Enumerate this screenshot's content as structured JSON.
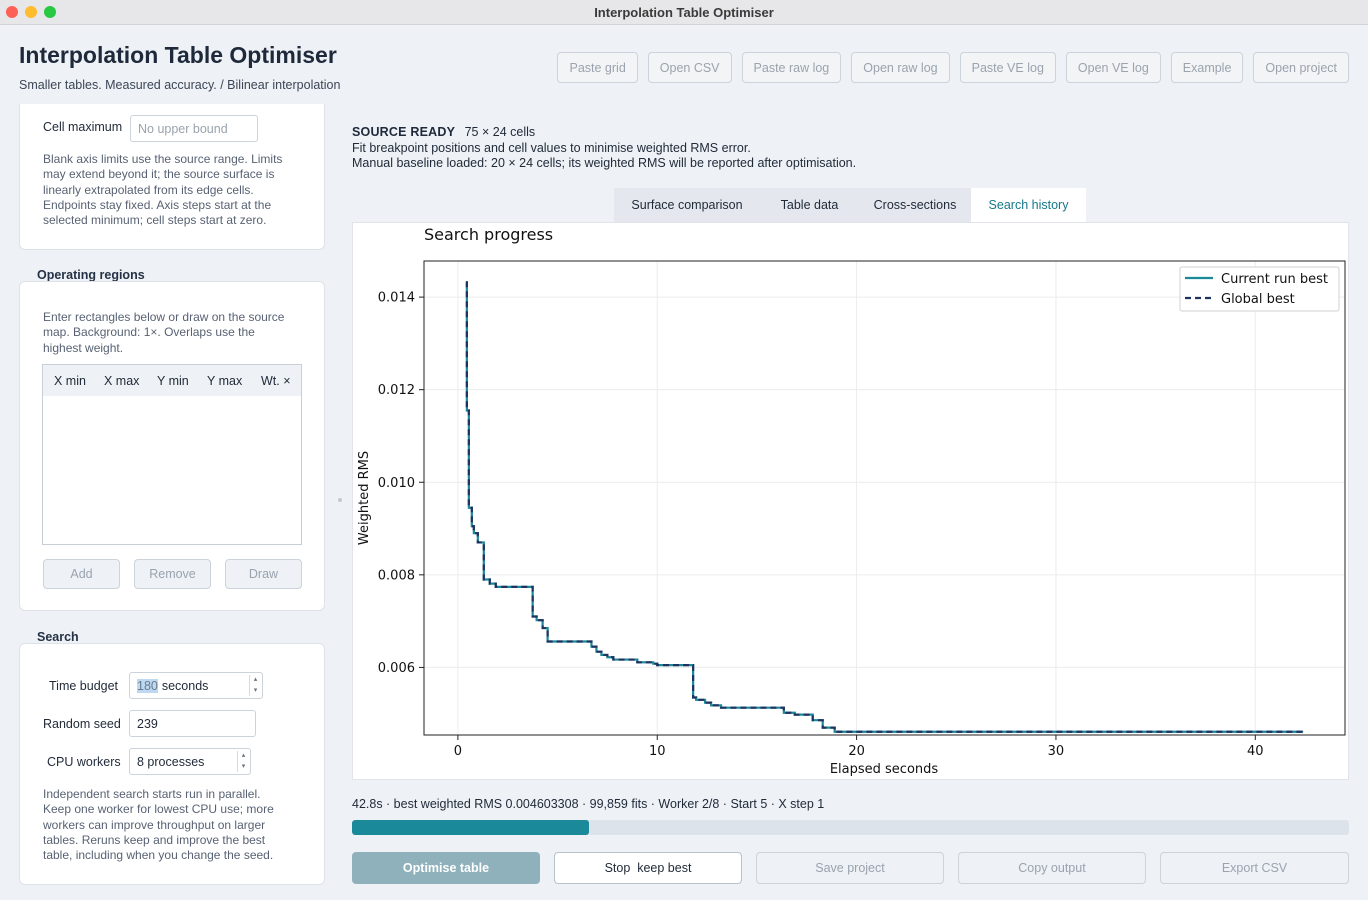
{
  "window": {
    "title": "Interpolation Table Optimiser"
  },
  "header": {
    "title": "Interpolation Table Optimiser",
    "subtitle": "Smaller tables. Measured accuracy.  /  Bilinear interpolation",
    "toolbar": [
      "Paste grid",
      "Open CSV",
      "Paste raw log",
      "Open raw log",
      "Paste VE log",
      "Open VE log",
      "Example",
      "Open project"
    ]
  },
  "limits": {
    "cell_max_label": "Cell maximum",
    "cell_max_placeholder": "No upper bound",
    "help": [
      "Blank axis limits use the source range. Limits",
      "may extend beyond it; the source surface is",
      "linearly extrapolated from its edge cells.",
      "Endpoints stay fixed. Axis steps start at the",
      "selected minimum; cell steps start at zero."
    ]
  },
  "regions": {
    "title": "Operating regions",
    "help": [
      "Enter rectangles below or draw on the source",
      "map. Background: 1×. Overlaps use the",
      "highest weight."
    ],
    "columns": [
      "X min",
      "X max",
      "Y min",
      "Y max",
      "Wt. ×"
    ],
    "buttons": {
      "add": "Add",
      "remove": "Remove",
      "draw": "Draw"
    }
  },
  "search": {
    "title": "Search",
    "time_budget_label": "Time budget",
    "time_budget_value": "180",
    "time_budget_unit": "seconds",
    "seed_label": "Random seed",
    "seed_value": "239",
    "workers_label": "CPU workers",
    "workers_value": "8 processes",
    "help": [
      "Independent search starts run in parallel.",
      "Keep one worker for lowest CPU use; more",
      "workers can improve throughput on larger",
      "tables. Reruns keep and improve the best",
      "table, including when you change the seed."
    ]
  },
  "source": {
    "status": "SOURCE READY",
    "dims": "75 × 24 cells",
    "line1": "Fit breakpoint positions and cell values to minimise weighted RMS error.",
    "line2": "Manual baseline loaded: 20 × 24 cells; its weighted RMS will be reported after optimisation."
  },
  "tabs": [
    "Surface comparison",
    "Table data",
    "Cross-sections",
    "Search history"
  ],
  "active_tab": 3,
  "chart_data": {
    "type": "line",
    "title": "Search progress",
    "xlabel": "Elapsed seconds",
    "ylabel": "Weighted RMS",
    "xlim": [
      -1.7,
      44.5
    ],
    "ylim": [
      0.00454,
      0.01478
    ],
    "xticks": [
      0,
      10,
      20,
      30,
      40
    ],
    "yticks": [
      0.006,
      0.008,
      0.01,
      0.012,
      0.014
    ],
    "xtick_labels": [
      "0",
      "10",
      "20",
      "30",
      "40"
    ],
    "ytick_labels": [
      "0.006",
      "0.008",
      "0.010",
      "0.012",
      "0.014"
    ],
    "grid": true,
    "legend_position": "top-right",
    "series": [
      {
        "name": "Current run best",
        "color": "#1a8a9a",
        "style": "solid",
        "step": true,
        "x": [
          0.4,
          0.45,
          0.55,
          0.7,
          0.8,
          1.0,
          1.3,
          1.6,
          1.9,
          3.75,
          3.95,
          4.25,
          4.5,
          6.7,
          6.95,
          7.2,
          7.5,
          7.8,
          9.0,
          9.8,
          10.0,
          10.6,
          11.8,
          11.95,
          12.4,
          12.7,
          13.2,
          16.35,
          16.9,
          17.8,
          18.3,
          18.9,
          42.4
        ],
        "y": [
          0.01432,
          0.01155,
          0.00945,
          0.00905,
          0.0089,
          0.0087,
          0.0079,
          0.00781,
          0.00774,
          0.0071,
          0.00702,
          0.00685,
          0.00656,
          0.00645,
          0.00634,
          0.00627,
          0.00622,
          0.00617,
          0.00611,
          0.00608,
          0.00605,
          0.00605,
          0.00535,
          0.0053,
          0.00524,
          0.00518,
          0.00513,
          0.00502,
          0.00498,
          0.00486,
          0.0047,
          0.00461,
          0.00461
        ]
      },
      {
        "name": "Global best",
        "color": "#1f3260",
        "style": "dashed",
        "step": true,
        "x": [
          0.4,
          0.45,
          0.55,
          0.7,
          0.8,
          1.0,
          1.3,
          1.6,
          1.9,
          3.75,
          3.95,
          4.25,
          4.5,
          6.7,
          6.95,
          7.2,
          7.5,
          7.8,
          9.0,
          9.8,
          10.0,
          10.6,
          11.8,
          11.95,
          12.4,
          12.7,
          13.2,
          16.35,
          16.9,
          17.8,
          18.3,
          18.9,
          42.4
        ],
        "y": [
          0.01432,
          0.01155,
          0.00945,
          0.00905,
          0.0089,
          0.0087,
          0.0079,
          0.00781,
          0.00774,
          0.0071,
          0.00702,
          0.00685,
          0.00656,
          0.00645,
          0.00634,
          0.00627,
          0.00622,
          0.00617,
          0.00611,
          0.00608,
          0.00605,
          0.00605,
          0.00535,
          0.0053,
          0.00524,
          0.00518,
          0.00513,
          0.00502,
          0.00498,
          0.00486,
          0.0047,
          0.00461,
          0.00461
        ]
      }
    ]
  },
  "status": {
    "text": "42.8s · best weighted RMS 0.004603308 · 99,859 fits · Worker 2/8 · Start 5 · X step 1",
    "progress": 0.238
  },
  "actions": {
    "optimise": "Optimise table",
    "stop": "Stop  keep best",
    "save": "Save project",
    "copy": "Copy output",
    "export": "Export CSV"
  }
}
